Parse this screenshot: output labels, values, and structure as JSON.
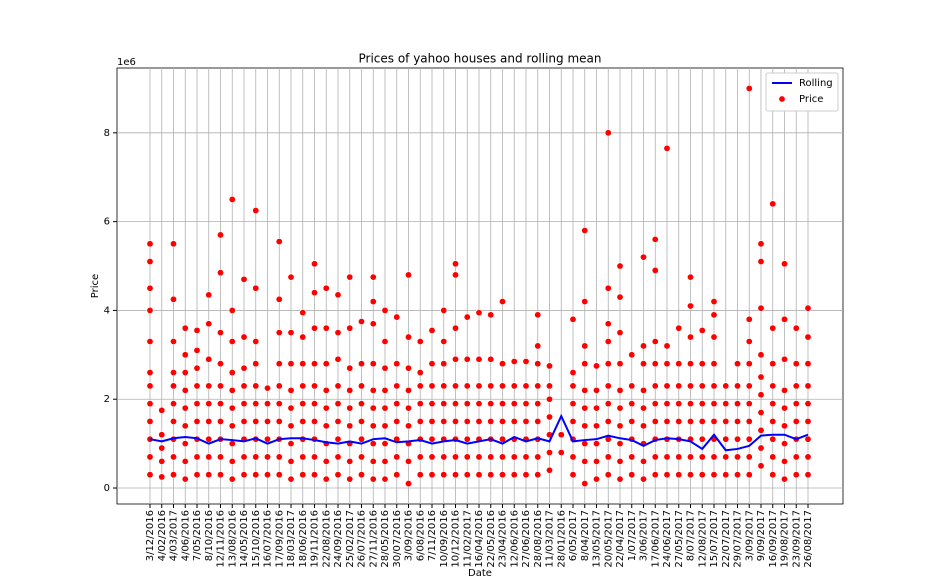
{
  "chart_data": {
    "type": "scatter",
    "title": "Prices of yahoo houses and rolling mean",
    "xlabel": "Date",
    "ylabel": "Price",
    "y_offset_label": "1e6",
    "categories": [
      "3/12/2016",
      "4/02/2016",
      "4/03/2017",
      "4/06/2016",
      "7/05/2016",
      "8/10/2016",
      "12/11/2016",
      "13/08/2016",
      "14/05/2016",
      "15/10/2016",
      "16/07/2016",
      "17/09/2016",
      "18/03/2017",
      "18/06/2016",
      "19/11/2016",
      "22/08/2016",
      "24/09/2016",
      "25/02/2017",
      "26/07/2016",
      "27/11/2016",
      "28/05/2016",
      "30/07/2016",
      "3/09/2016",
      "6/08/2016",
      "7/11/2016",
      "10/09/2016",
      "10/12/2016",
      "11/02/2017",
      "16/04/2016",
      "22/05/2016",
      "23/04/2016",
      "12/06/2016",
      "27/06/2016",
      "28/08/2016",
      "11/03/2017",
      "28/01/2016",
      "6/05/2017",
      "8/04/2017",
      "13/05/2017",
      "20/05/2017",
      "22/04/2017",
      "1/07/2017",
      "3/06/2017",
      "17/06/2017",
      "24/06/2017",
      "27/05/2017",
      "8/07/2017",
      "12/08/2017",
      "15/07/2017",
      "22/07/2017",
      "29/07/2017",
      "3/09/2017",
      "9/09/2017",
      "16/09/2017",
      "19/08/2017",
      "23/09/2017",
      "26/08/2017"
    ],
    "ylim": [
      -0.36,
      9.46
    ],
    "yticks": [
      0,
      2,
      4,
      6,
      8
    ],
    "grid": true,
    "legend": "upper right",
    "series": [
      {
        "name": "Rolling",
        "type": "line",
        "color": "#0000ff",
        "values": [
          1.1,
          1.05,
          1.12,
          1.15,
          1.12,
          1.0,
          1.1,
          1.08,
          1.05,
          1.12,
          1.0,
          1.1,
          1.12,
          1.12,
          1.08,
          1.03,
          1.0,
          1.05,
          1.0,
          1.1,
          1.12,
          1.03,
          1.05,
          1.08,
          1.0,
          1.05,
          1.08,
          1.0,
          1.05,
          1.1,
          1.0,
          1.15,
          1.05,
          1.12,
          1.05,
          1.62,
          1.05,
          1.08,
          1.1,
          1.18,
          1.12,
          1.08,
          0.95,
          1.08,
          1.12,
          1.1,
          1.05,
          0.88,
          1.2,
          0.85,
          0.88,
          0.95,
          1.18,
          1.2,
          1.2,
          1.1,
          1.2
        ]
      },
      {
        "name": "Price",
        "type": "scatter",
        "color": "#ff0000",
        "values": [
          [
            0.3,
            0.7,
            1.1,
            1.5,
            1.9,
            2.3,
            2.6,
            3.3,
            4.0,
            4.5,
            5.1,
            5.5
          ],
          [
            0.25,
            0.6,
            0.9,
            1.2,
            1.75
          ],
          [
            0.3,
            0.7,
            1.1,
            1.5,
            1.9,
            2.3,
            2.6,
            3.3,
            4.25,
            5.5
          ],
          [
            0.2,
            0.6,
            1.0,
            1.4,
            1.8,
            2.2,
            2.6,
            3.0,
            3.6
          ],
          [
            0.3,
            0.7,
            1.1,
            1.5,
            1.9,
            2.3,
            2.7,
            3.1,
            3.55
          ],
          [
            0.3,
            0.7,
            1.1,
            1.5,
            1.9,
            2.3,
            2.9,
            3.7,
            4.35
          ],
          [
            0.3,
            0.7,
            1.1,
            1.5,
            1.9,
            2.3,
            2.8,
            3.5,
            4.85,
            5.7
          ],
          [
            0.2,
            0.6,
            1.0,
            1.4,
            1.8,
            2.2,
            2.6,
            3.3,
            4.0,
            6.5
          ],
          [
            0.3,
            0.7,
            1.1,
            1.5,
            1.9,
            2.3,
            2.7,
            3.4,
            4.7
          ],
          [
            0.3,
            0.7,
            1.1,
            1.5,
            1.9,
            2.3,
            2.8,
            3.3,
            4.5,
            6.25
          ],
          [
            0.3,
            0.7,
            1.1,
            1.5,
            1.9,
            2.25
          ],
          [
            0.3,
            0.7,
            1.1,
            1.5,
            1.9,
            2.3,
            2.8,
            3.5,
            4.25,
            5.55
          ],
          [
            0.2,
            0.6,
            1.0,
            1.4,
            1.8,
            2.2,
            2.8,
            3.5,
            4.75
          ],
          [
            0.3,
            0.7,
            1.1,
            1.5,
            1.9,
            2.3,
            2.8,
            3.4,
            3.95
          ],
          [
            0.3,
            0.7,
            1.1,
            1.5,
            1.9,
            2.3,
            2.8,
            3.6,
            4.4,
            5.05
          ],
          [
            0.2,
            0.6,
            1.0,
            1.4,
            1.8,
            2.2,
            2.8,
            3.6,
            4.5
          ],
          [
            0.3,
            0.7,
            1.1,
            1.5,
            1.9,
            2.3,
            2.9,
            3.5,
            4.35
          ],
          [
            0.2,
            0.6,
            1.0,
            1.4,
            1.8,
            2.2,
            2.7,
            3.6,
            4.75
          ],
          [
            0.3,
            0.7,
            1.1,
            1.5,
            1.9,
            2.3,
            2.8,
            3.75
          ],
          [
            0.2,
            0.6,
            1.0,
            1.4,
            1.8,
            2.2,
            2.8,
            3.7,
            4.2,
            4.75
          ],
          [
            0.2,
            0.6,
            1.0,
            1.4,
            1.8,
            2.2,
            2.7,
            3.3,
            4.0
          ],
          [
            0.3,
            0.7,
            1.1,
            1.5,
            1.9,
            2.3,
            2.8,
            3.85
          ],
          [
            0.1,
            0.6,
            1.0,
            1.4,
            1.8,
            2.2,
            2.7,
            3.4,
            4.8
          ],
          [
            0.3,
            0.7,
            1.1,
            1.5,
            1.9,
            2.3,
            2.6,
            3.3
          ],
          [
            0.3,
            0.7,
            1.1,
            1.5,
            1.9,
            2.3,
            2.8,
            3.55
          ],
          [
            0.3,
            0.7,
            1.1,
            1.5,
            1.9,
            2.3,
            2.8,
            3.3,
            4.0
          ],
          [
            0.3,
            0.7,
            1.1,
            1.5,
            1.9,
            2.3,
            2.9,
            3.6,
            4.8,
            5.05
          ],
          [
            0.3,
            0.7,
            1.1,
            1.5,
            1.9,
            2.3,
            2.9,
            3.85
          ],
          [
            0.3,
            0.7,
            1.1,
            1.5,
            1.9,
            2.3,
            2.9,
            3.95
          ],
          [
            0.3,
            0.7,
            1.1,
            1.5,
            1.9,
            2.3,
            2.9,
            3.9
          ],
          [
            0.3,
            0.7,
            1.1,
            1.5,
            1.9,
            2.3,
            2.8,
            4.2
          ],
          [
            0.3,
            0.7,
            1.1,
            1.5,
            1.9,
            2.3,
            2.85
          ],
          [
            0.3,
            0.7,
            1.1,
            1.5,
            1.9,
            2.3,
            2.85
          ],
          [
            0.3,
            0.7,
            1.1,
            1.5,
            1.9,
            2.3,
            2.8,
            3.2,
            3.9
          ],
          [
            0.4,
            0.8,
            1.2,
            1.6,
            2.0,
            2.3,
            2.75
          ],
          [
            0.8,
            1.2
          ],
          [
            0.3,
            0.7,
            1.1,
            1.5,
            1.9,
            2.3,
            2.6,
            3.8
          ],
          [
            0.1,
            0.6,
            1.0,
            1.4,
            1.8,
            2.2,
            2.8,
            3.2,
            4.2,
            5.8
          ],
          [
            0.2,
            0.6,
            1.0,
            1.4,
            1.8,
            2.2,
            2.75
          ],
          [
            0.3,
            0.7,
            1.1,
            1.5,
            1.9,
            2.3,
            2.8,
            3.3,
            3.7,
            4.5,
            8.0
          ],
          [
            0.2,
            0.6,
            1.0,
            1.4,
            1.8,
            2.2,
            2.8,
            3.5,
            4.3,
            5.0
          ],
          [
            0.3,
            0.7,
            1.1,
            1.5,
            1.9,
            2.3,
            3.0
          ],
          [
            0.2,
            0.6,
            1.0,
            1.4,
            1.8,
            2.2,
            2.8,
            3.2,
            5.2
          ],
          [
            0.3,
            0.7,
            1.1,
            1.5,
            1.9,
            2.3,
            2.8,
            3.3,
            4.9,
            5.6
          ],
          [
            0.3,
            0.7,
            1.1,
            1.5,
            1.9,
            2.3,
            2.8,
            3.2,
            7.65
          ],
          [
            0.3,
            0.7,
            1.1,
            1.5,
            1.9,
            2.3,
            2.8,
            3.6
          ],
          [
            0.3,
            0.7,
            1.1,
            1.5,
            1.9,
            2.3,
            2.8,
            3.4,
            4.1,
            4.75
          ],
          [
            0.3,
            0.7,
            1.1,
            1.5,
            1.9,
            2.3,
            2.8,
            3.55
          ],
          [
            0.3,
            0.7,
            1.1,
            1.5,
            1.9,
            2.3,
            2.8,
            3.4,
            3.9,
            4.2
          ],
          [
            0.3,
            0.7,
            1.1,
            1.5,
            1.9,
            2.3
          ],
          [
            0.3,
            0.7,
            1.1,
            1.5,
            1.9,
            2.3,
            2.8
          ],
          [
            0.3,
            0.7,
            1.1,
            1.5,
            1.9,
            2.3,
            2.8,
            3.3,
            3.8,
            9.0
          ],
          [
            0.5,
            0.9,
            1.3,
            1.7,
            2.1,
            2.5,
            3.0,
            4.05,
            5.1,
            5.5
          ],
          [
            0.3,
            0.7,
            1.1,
            1.5,
            1.9,
            2.3,
            2.8,
            3.6,
            6.4
          ],
          [
            0.2,
            0.6,
            1.0,
            1.4,
            1.8,
            2.2,
            2.9,
            3.8,
            5.05
          ],
          [
            0.3,
            0.7,
            1.1,
            1.5,
            1.9,
            2.3,
            2.8,
            3.6
          ],
          [
            0.3,
            0.7,
            1.1,
            1.5,
            1.9,
            2.3,
            2.8,
            3.4,
            4.05
          ]
        ]
      }
    ]
  }
}
